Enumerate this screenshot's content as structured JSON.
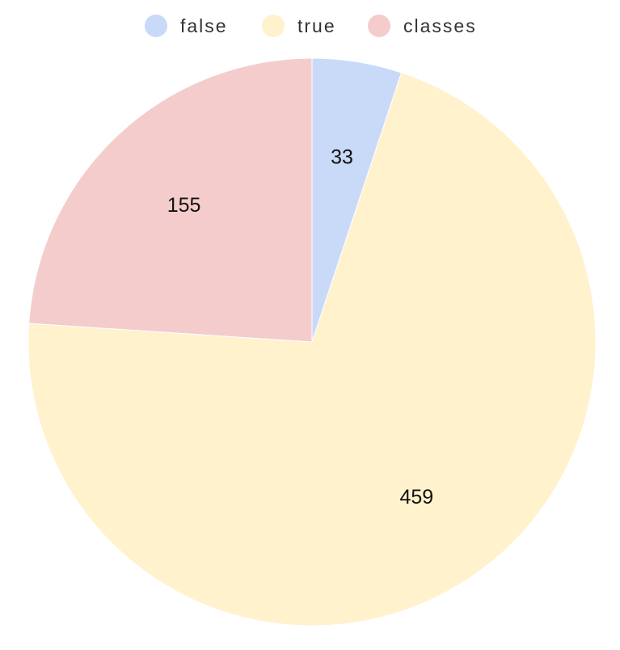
{
  "chart_data": {
    "type": "pie",
    "title": "",
    "legend_position": "top",
    "start_angle": "12 o'clock, clockwise",
    "categories": [
      "false",
      "true",
      "classes"
    ],
    "values": [
      33,
      459,
      155
    ],
    "colors": [
      "#c9daf8",
      "#fff2cc",
      "#f4cccc"
    ]
  }
}
